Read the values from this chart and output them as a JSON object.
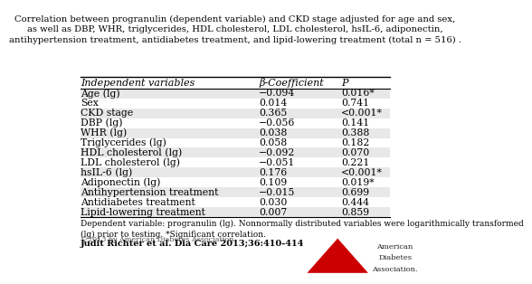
{
  "title": "Correlation between progranulin (dependent variable) and CKD stage adjusted for age and sex,\nas well as DBP, WHR, triglycerides, HDL cholesterol, LDL cholesterol, hsIL-6, adiponectin,\nantihypertension treatment, antidiabetes treatment, and lipid-lowering treatment (total n = 516) .",
  "col_headers": [
    "Independent variables",
    "β-Coefficient",
    "P"
  ],
  "rows": [
    [
      "Age (lg)",
      "−0.094",
      "0.016*"
    ],
    [
      "Sex",
      "0.014",
      "0.741"
    ],
    [
      "CKD stage",
      "0.365",
      "<0.001*"
    ],
    [
      "DBP (lg)",
      "−0.056",
      "0.141"
    ],
    [
      "WHR (lg)",
      "0.038",
      "0.388"
    ],
    [
      "Triglycerides (lg)",
      "0.058",
      "0.182"
    ],
    [
      "HDL cholesterol (lg)",
      "−0.092",
      "0.070"
    ],
    [
      "LDL cholesterol (lg)",
      "−0.051",
      "0.221"
    ],
    [
      "hsIL-6 (lg)",
      "0.176",
      "<0.001*"
    ],
    [
      "Adiponectin (lg)",
      "0.109",
      "0.019*"
    ],
    [
      "Antihypertension treatment",
      "−0.015",
      "0.699"
    ],
    [
      "Antidiabetes treatment",
      "0.030",
      "0.444"
    ],
    [
      "Lipid-lowering treatment",
      "0.007",
      "0.859"
    ]
  ],
  "shaded_rows": [
    0,
    2,
    4,
    6,
    8,
    10,
    12
  ],
  "footnote": "Dependent variable: progranulin (lg). Nonnormally distributed variables were logarithmically transformed\n(lg) prior to testing. *Significant correlation.",
  "citation": "Judit Richter et al. Dia Care 2013;36:410-414",
  "copyright": "©2013 by American Diabetes Association",
  "bg_color": "#ffffff",
  "shade_color": "#e8e8e8",
  "header_line_color": "#000000",
  "text_color": "#000000",
  "title_fontsize": 7.2,
  "header_fontsize": 8.0,
  "cell_fontsize": 7.8,
  "footnote_fontsize": 6.5,
  "citation_fontsize": 7.0
}
